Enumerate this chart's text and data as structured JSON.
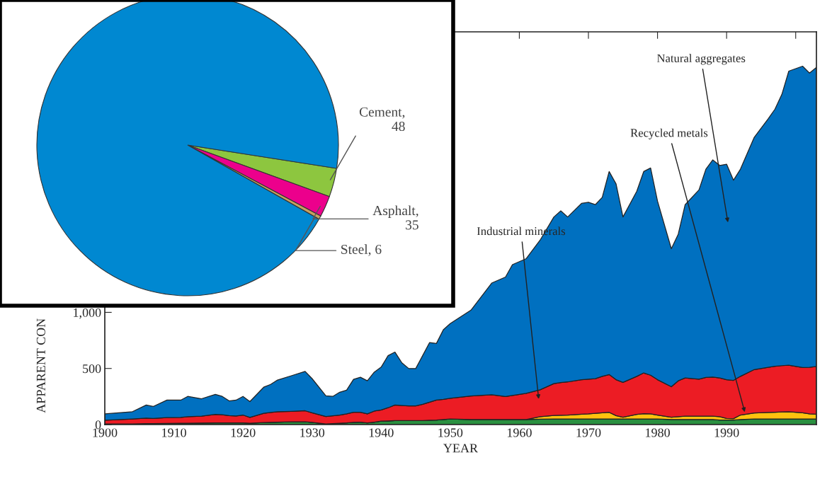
{
  "chart_data": [
    {
      "type": "pie",
      "categories": [
        "Cement, 48",
        "Asphalt, 35",
        "Steel, 6",
        null
      ],
      "values": [
        48,
        35,
        6,
        1470
      ],
      "colors": [
        "#8dc63f",
        "#ec008c",
        "#c8a060",
        "#0088d1"
      ]
    },
    {
      "type": "area",
      "stacked": true,
      "xlabel": "YEAR",
      "ylabel": "APPARENT CON",
      "x": [
        1900,
        1904,
        1906,
        1907,
        1909,
        1911,
        1912,
        1914,
        1916,
        1917,
        1918,
        1919,
        1920,
        1921,
        1923,
        1924,
        1925,
        1927,
        1929,
        1930,
        1932,
        1933,
        1934,
        1935,
        1936,
        1937,
        1938,
        1939,
        1940,
        1941,
        1942,
        1943,
        1944,
        1945,
        1946,
        1947,
        1948,
        1949,
        1950,
        1953,
        1956,
        1958,
        1959,
        1961,
        1963,
        1965,
        1966,
        1967,
        1969,
        1970,
        1971,
        1972,
        1973,
        1974,
        1975,
        1977,
        1978,
        1979,
        1980,
        1982,
        1983,
        1984,
        1986,
        1987,
        1988,
        1989,
        1990,
        1991,
        1992,
        1994,
        1996,
        1997,
        1998,
        1999,
        2001,
        2002,
        2003
      ],
      "series": [
        {
          "color": "#2a9040",
          "values": [
            5,
            5,
            8,
            8,
            10,
            12,
            12,
            14,
            15,
            15,
            15,
            15,
            15,
            12,
            18,
            20,
            22,
            24,
            25,
            20,
            5,
            8,
            12,
            15,
            20,
            22,
            15,
            22,
            30,
            32,
            35,
            35,
            35,
            35,
            35,
            38,
            40,
            45,
            50,
            45,
            45,
            45,
            45,
            45,
            48,
            50,
            50,
            50,
            50,
            50,
            50,
            50,
            50,
            50,
            50,
            50,
            50,
            50,
            50,
            45,
            45,
            45,
            45,
            45,
            45,
            40,
            40,
            40,
            45,
            50,
            50,
            50,
            50,
            50,
            50,
            50,
            50
          ]
        },
        {
          "color": "#ffc20e",
          "values": [
            0,
            0,
            0,
            0,
            0,
            0,
            0,
            0,
            0,
            0,
            0,
            0,
            0,
            0,
            0,
            0,
            0,
            0,
            0,
            0,
            0,
            0,
            0,
            0,
            0,
            0,
            0,
            0,
            0,
            0,
            0,
            0,
            0,
            0,
            0,
            0,
            0,
            0,
            0,
            0,
            0,
            0,
            0,
            0,
            22,
            31,
            33,
            35,
            42,
            45,
            50,
            55,
            59,
            30,
            16,
            40,
            47,
            45,
            35,
            21,
            25,
            30,
            30,
            30,
            30,
            30,
            15,
            13,
            40,
            53,
            58,
            60,
            62,
            64,
            55,
            45,
            42
          ]
        },
        {
          "color": "#ec1c24",
          "values": [
            33,
            45,
            50,
            47,
            52,
            52,
            58,
            61,
            75,
            73,
            65,
            62,
            70,
            52,
            82,
            88,
            93,
            94,
            98,
            85,
            67,
            70,
            73,
            80,
            89,
            88,
            80,
            98,
            100,
            118,
            139,
            135,
            131,
            131,
            145,
            162,
            178,
            180,
            184,
            210,
            220,
            205,
            215,
            233,
            240,
            284,
            292,
            295,
            308,
            310,
            309,
            325,
            337,
            320,
            310,
            340,
            363,
            345,
            315,
            271,
            320,
            340,
            330,
            345,
            349,
            345,
            345,
            341,
            345,
            387,
            402,
            410,
            413,
            415,
            403,
            415,
            426
          ]
        },
        {
          "color": "#0070c0",
          "values": [
            57,
            65,
            116,
            106,
            156,
            154,
            181,
            155,
            179,
            163,
            131,
            141,
            166,
            141,
            233,
            250,
            282,
            317,
            351,
            305,
            184,
            173,
            203,
            212,
            294,
            312,
            295,
            347,
            382,
            464,
            472,
            380,
            333,
            333,
            434,
            530,
            505,
            620,
            666,
            765,
            996,
            1065,
            1165,
            1201,
            1333,
            1485,
            1530,
            1470,
            1571,
            1576,
            1551,
            1595,
            1809,
            1745,
            1474,
            1650,
            1795,
            1847,
            1592,
            1230,
            1307,
            1545,
            1686,
            1856,
            1935,
            1894,
            1920,
            1784,
            1846,
            2070,
            2214,
            2291,
            2418,
            2621,
            2686,
            2623,
            2665
          ]
        }
      ],
      "xlim": [
        1900,
        2003
      ],
      "ylim": [
        0,
        3500
      ],
      "xticks": [
        1900,
        1910,
        1920,
        1930,
        1940,
        1950,
        1960,
        1970,
        1980,
        1990,
        {
          "value": 2000,
          "label": null
        }
      ],
      "yticks": [
        0,
        500,
        {
          "value": 1000,
          "label": "1,000"
        }
      ],
      "grid": false,
      "annotations": [
        "Natural aggregates",
        {
          "text": "Recycled metals",
          "x": 1992.7,
          "y": 95
        },
        "Industrial minerals"
      ]
    }
  ]
}
